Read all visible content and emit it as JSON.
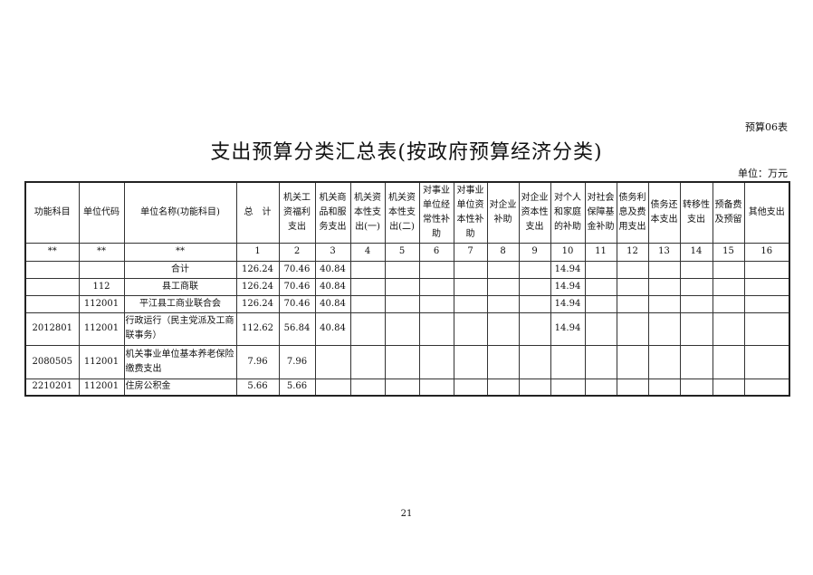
{
  "tag": "预算06表",
  "title": "支出预算分类汇总表(按政府预算经济分类)",
  "unit": "单位：万元",
  "headers": [
    "功能科目",
    "单位代码",
    "单位名称(功能科目)",
    "总　计",
    "机关工资福利支出",
    "机关商品和服务支出",
    "机关资本性支出(一)",
    "机关资本性支出(二)",
    "对事业单位经常性补助",
    "对事业单位资本性补助",
    "对企业补助",
    "对企业资本性支出",
    "对个人和家庭的补助",
    "对社会保障基金补助",
    "债务利息及费用支出",
    "债务还本支出",
    "转移性支出",
    "预备费及预留",
    "其他支出"
  ],
  "index_row": [
    "**",
    "**",
    "**",
    "1",
    "2",
    "3",
    "4",
    "5",
    "6",
    "7",
    "8",
    "9",
    "10",
    "11",
    "12",
    "13",
    "14",
    "15",
    "16"
  ],
  "rows": [
    [
      "",
      "",
      "合计",
      "126.24",
      "70.46",
      "40.84",
      "",
      "",
      "",
      "",
      "",
      "",
      "14.94",
      "",
      "",
      "",
      "",
      "",
      ""
    ],
    [
      "",
      "112",
      "县工商联",
      "126.24",
      "70.46",
      "40.84",
      "",
      "",
      "",
      "",
      "",
      "",
      "14.94",
      "",
      "",
      "",
      "",
      "",
      ""
    ],
    [
      "",
      "112001",
      "平江县工商业联合会",
      "126.24",
      "70.46",
      "40.84",
      "",
      "",
      "",
      "",
      "",
      "",
      "14.94",
      "",
      "",
      "",
      "",
      "",
      ""
    ],
    [
      "2012801",
      "112001",
      "行政运行（民主党派及工商联事务）",
      "112.62",
      "56.84",
      "40.84",
      "",
      "",
      "",
      "",
      "",
      "",
      "14.94",
      "",
      "",
      "",
      "",
      "",
      ""
    ],
    [
      "2080505",
      "112001",
      "机关事业单位基本养老保险缴费支出",
      "7.96",
      "7.96",
      "",
      "",
      "",
      "",
      "",
      "",
      "",
      "",
      "",
      "",
      "",
      "",
      "",
      ""
    ],
    [
      "2210201",
      "112001",
      "住房公积金",
      "5.66",
      "5.66",
      "",
      "",
      "",
      "",
      "",
      "",
      "",
      "",
      "",
      "",
      "",
      "",
      "",
      ""
    ]
  ],
  "page_number": "21"
}
